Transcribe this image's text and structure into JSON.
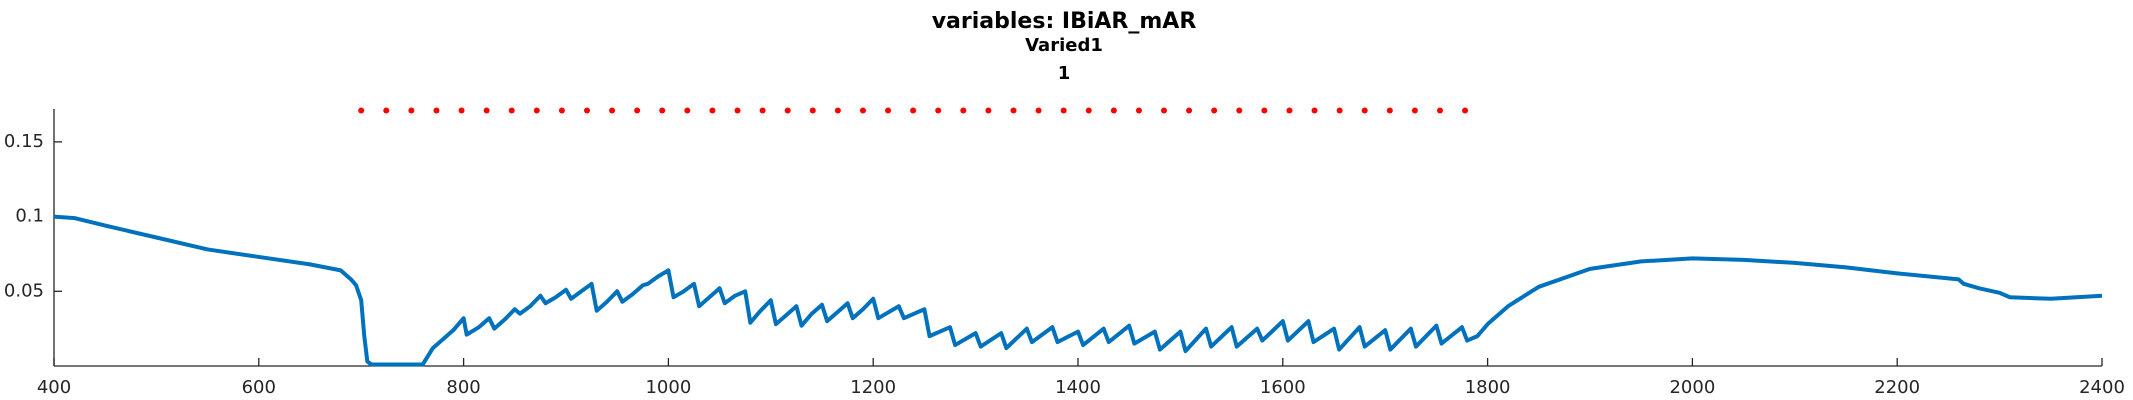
{
  "chart_data": {
    "type": "line",
    "title": "variables: IBiAR_mAR",
    "subtitles": [
      "Varied1",
      "1"
    ],
    "xlim": [
      400,
      2400
    ],
    "xticks": [
      400,
      600,
      800,
      1000,
      1200,
      1400,
      1600,
      1800,
      2000,
      2200,
      2400
    ],
    "ylim": [
      0,
      0.172
    ],
    "yticks": [
      0.05,
      0.1,
      0.15
    ],
    "series": [
      {
        "type": "line",
        "color": "#0072bd",
        "x": [
          400,
          420,
          450,
          500,
          550,
          600,
          650,
          680,
          690,
          695,
          700,
          703,
          706,
          710,
          760,
          770,
          780,
          790,
          800,
          803,
          815,
          825,
          830,
          840,
          850,
          855,
          865,
          875,
          880,
          890,
          900,
          905,
          915,
          925,
          930,
          940,
          950,
          955,
          965,
          975,
          980,
          990,
          1000,
          1005,
          1015,
          1025,
          1030,
          1040,
          1050,
          1055,
          1065,
          1075,
          1080,
          1090,
          1100,
          1105,
          1115,
          1125,
          1130,
          1140,
          1150,
          1155,
          1165,
          1175,
          1180,
          1190,
          1200,
          1205,
          1215,
          1225,
          1230,
          1240,
          1250,
          1255,
          1275,
          1280,
          1300,
          1305,
          1325,
          1330,
          1350,
          1355,
          1375,
          1380,
          1400,
          1405,
          1425,
          1430,
          1450,
          1455,
          1475,
          1480,
          1500,
          1505,
          1525,
          1530,
          1550,
          1555,
          1575,
          1580,
          1600,
          1605,
          1625,
          1630,
          1650,
          1655,
          1675,
          1680,
          1700,
          1705,
          1725,
          1730,
          1750,
          1755,
          1775,
          1780,
          1790,
          1800,
          1820,
          1850,
          1900,
          1950,
          2000,
          2050,
          2100,
          2150,
          2200,
          2260,
          2265,
          2280,
          2300,
          2310,
          2350,
          2400
        ],
        "values": [
          0.1,
          0.099,
          0.094,
          0.086,
          0.078,
          0.073,
          0.068,
          0.064,
          0.058,
          0.054,
          0.044,
          0.02,
          0.003,
          0.001,
          0.001,
          0.012,
          0.018,
          0.024,
          0.032,
          0.021,
          0.026,
          0.032,
          0.025,
          0.031,
          0.038,
          0.035,
          0.04,
          0.047,
          0.042,
          0.046,
          0.051,
          0.045,
          0.05,
          0.055,
          0.037,
          0.043,
          0.05,
          0.043,
          0.048,
          0.054,
          0.055,
          0.06,
          0.064,
          0.046,
          0.05,
          0.055,
          0.04,
          0.046,
          0.052,
          0.042,
          0.047,
          0.05,
          0.029,
          0.037,
          0.044,
          0.028,
          0.034,
          0.04,
          0.027,
          0.035,
          0.041,
          0.03,
          0.036,
          0.042,
          0.032,
          0.038,
          0.045,
          0.032,
          0.036,
          0.04,
          0.032,
          0.035,
          0.038,
          0.02,
          0.026,
          0.014,
          0.022,
          0.013,
          0.022,
          0.012,
          0.025,
          0.016,
          0.026,
          0.016,
          0.023,
          0.014,
          0.025,
          0.016,
          0.027,
          0.015,
          0.023,
          0.011,
          0.023,
          0.01,
          0.025,
          0.013,
          0.026,
          0.013,
          0.025,
          0.017,
          0.03,
          0.017,
          0.03,
          0.016,
          0.025,
          0.011,
          0.026,
          0.013,
          0.024,
          0.011,
          0.025,
          0.013,
          0.027,
          0.015,
          0.026,
          0.017,
          0.02,
          0.028,
          0.04,
          0.053,
          0.065,
          0.07,
          0.072,
          0.071,
          0.069,
          0.066,
          0.062,
          0.058,
          0.055,
          0.052,
          0.049,
          0.046,
          0.045,
          0.047
        ]
      },
      {
        "type": "scatter",
        "color": "#ff0000",
        "x": [
          700,
          724.5,
          749,
          773.5,
          798,
          822.5,
          847,
          871.5,
          896,
          920.5,
          945,
          969.5,
          994,
          1018.5,
          1043,
          1067.5,
          1092,
          1116.5,
          1141,
          1165.5,
          1190,
          1214.5,
          1239,
          1263.5,
          1288,
          1312.5,
          1337,
          1361.5,
          1386,
          1410.5,
          1435,
          1459.5,
          1484,
          1508.5,
          1533,
          1557.5,
          1582,
          1606.5,
          1631,
          1655.5,
          1680,
          1704.5,
          1729,
          1753.5,
          1778
        ],
        "values": [
          0.171,
          0.171,
          0.171,
          0.171,
          0.171,
          0.171,
          0.171,
          0.171,
          0.171,
          0.171,
          0.171,
          0.171,
          0.171,
          0.171,
          0.171,
          0.171,
          0.171,
          0.171,
          0.171,
          0.171,
          0.171,
          0.171,
          0.171,
          0.171,
          0.171,
          0.171,
          0.171,
          0.171,
          0.171,
          0.171,
          0.171,
          0.171,
          0.171,
          0.171,
          0.171,
          0.171,
          0.171,
          0.171,
          0.171,
          0.171,
          0.171,
          0.171,
          0.171,
          0.171,
          0.171
        ]
      }
    ]
  }
}
